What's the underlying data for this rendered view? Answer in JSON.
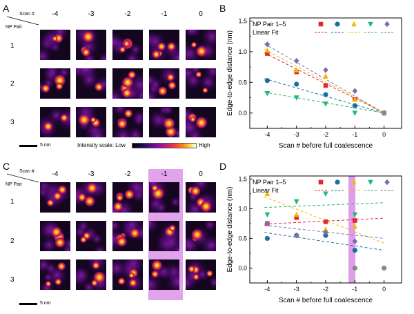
{
  "panels": {
    "a": "A",
    "b": "B",
    "c": "C",
    "d": "D"
  },
  "grid_header": {
    "scan": "Scan #",
    "pair": "NP Pair"
  },
  "scan_columns": [
    "-4",
    "-3",
    "-2",
    "-1",
    "0"
  ],
  "rows": [
    "1",
    "2",
    "3"
  ],
  "scalebar_label": "5 nm",
  "intensity": {
    "label": "Intensity scale: Low",
    "high": "High"
  },
  "highlight_color": "#d98ce6",
  "chart_data": [
    {
      "type": "scatter",
      "panel": "B",
      "xlabel": "Scan # before full coalescence",
      "ylabel": "Edge-to-edge distance (nm)",
      "xlim": [
        -4.6,
        0.6
      ],
      "ylim": [
        -0.25,
        1.55
      ],
      "xticks": [
        "-4",
        "-3",
        "-2",
        "-1",
        "0"
      ],
      "yticks": [
        "0.0",
        "0.5",
        "1.0",
        "1.5"
      ],
      "legend": {
        "markers_label": "NP Pair 1–5",
        "fit_label": "Linear Fit",
        "placement": "top"
      },
      "series": [
        {
          "name": "Pair 1",
          "marker": "square",
          "color": "#e8262a",
          "x": [
            -4,
            -3,
            -2,
            -1,
            0
          ],
          "y": [
            0.97,
            0.67,
            0.45,
            0.22,
            0.0
          ],
          "fit": [
            0.98,
            0.0
          ]
        },
        {
          "name": "Pair 2",
          "marker": "circle",
          "color": "#1b6e9e",
          "x": [
            -4,
            -3,
            -2,
            -1,
            0
          ],
          "y": [
            0.53,
            0.47,
            0.3,
            0.12,
            0.0
          ],
          "fit": [
            0.56,
            0.0
          ]
        },
        {
          "name": "Pair 3",
          "marker": "triangle-up",
          "color": "#f5b800",
          "x": [
            -4,
            -3,
            -2,
            -1,
            0
          ],
          "y": [
            1.02,
            0.7,
            0.6,
            0.22,
            0.0
          ],
          "fit": [
            1.04,
            0.0
          ]
        },
        {
          "name": "Pair 4",
          "marker": "triangle-down",
          "color": "#1fb87a",
          "x": [
            -4,
            -3,
            -2,
            -1,
            0
          ],
          "y": [
            0.32,
            0.25,
            0.15,
            0.0,
            0.0
          ],
          "fit": [
            0.34,
            0.0
          ]
        },
        {
          "name": "Pair 5",
          "marker": "diamond",
          "color": "#7e6cb3",
          "x": [
            -4,
            -3,
            -2,
            -1,
            0
          ],
          "y": [
            1.12,
            0.85,
            0.7,
            0.36,
            0.0
          ],
          "fit": [
            1.13,
            0.0
          ]
        }
      ]
    },
    {
      "type": "scatter",
      "panel": "D",
      "xlabel": "Scan # before full coalescence",
      "ylabel": "Edge-to-edge distance (nm)",
      "xlim": [
        -4.6,
        0.6
      ],
      "ylim": [
        -0.25,
        1.55
      ],
      "xticks": [
        "-4",
        "-3",
        "-2",
        "-1",
        "0"
      ],
      "yticks": [
        "0.0",
        "0.5",
        "1.0",
        "1.5"
      ],
      "legend": {
        "markers_label": "NP Pair 1–5",
        "fit_label": "Linear Fit",
        "placement": "top"
      },
      "highlight_x": -1.1,
      "series": [
        {
          "name": "Pair 1",
          "marker": "square",
          "color": "#e8262a",
          "x": [
            -4,
            -3,
            -2,
            -1
          ],
          "y": [
            0.75,
            0.85,
            0.78,
            0.8
          ],
          "fit": [
            0.74,
            0.84
          ]
        },
        {
          "name": "Pair 2",
          "marker": "circle",
          "color": "#1b6e9e",
          "x": [
            -4,
            -3,
            -2,
            -1,
            -1,
            0
          ],
          "y": [
            0.5,
            0.55,
            0.55,
            0.3,
            0.0,
            0.0
          ],
          "fit": [
            0.6,
            0.3
          ]
        },
        {
          "name": "Pair 3",
          "marker": "triangle-up",
          "color": "#f5b800",
          "x": [
            -4,
            -3,
            -2,
            -1
          ],
          "y": [
            1.25,
            0.9,
            0.65,
            0.7
          ],
          "fit": [
            1.2,
            0.42
          ]
        },
        {
          "name": "Pair 4",
          "marker": "triangle-down",
          "color": "#1fb87a",
          "x": [
            -4,
            -3,
            -2,
            -1
          ],
          "y": [
            0.9,
            1.12,
            1.25,
            0.9
          ],
          "fit": [
            1.02,
            1.1
          ]
        },
        {
          "name": "Pair 5",
          "marker": "diamond",
          "color": "#7e6cb3",
          "x": [
            -4,
            -3,
            -2,
            -1
          ],
          "y": [
            0.75,
            0.55,
            0.6,
            0.45
          ],
          "fit": [
            0.72,
            0.5
          ]
        }
      ]
    }
  ]
}
